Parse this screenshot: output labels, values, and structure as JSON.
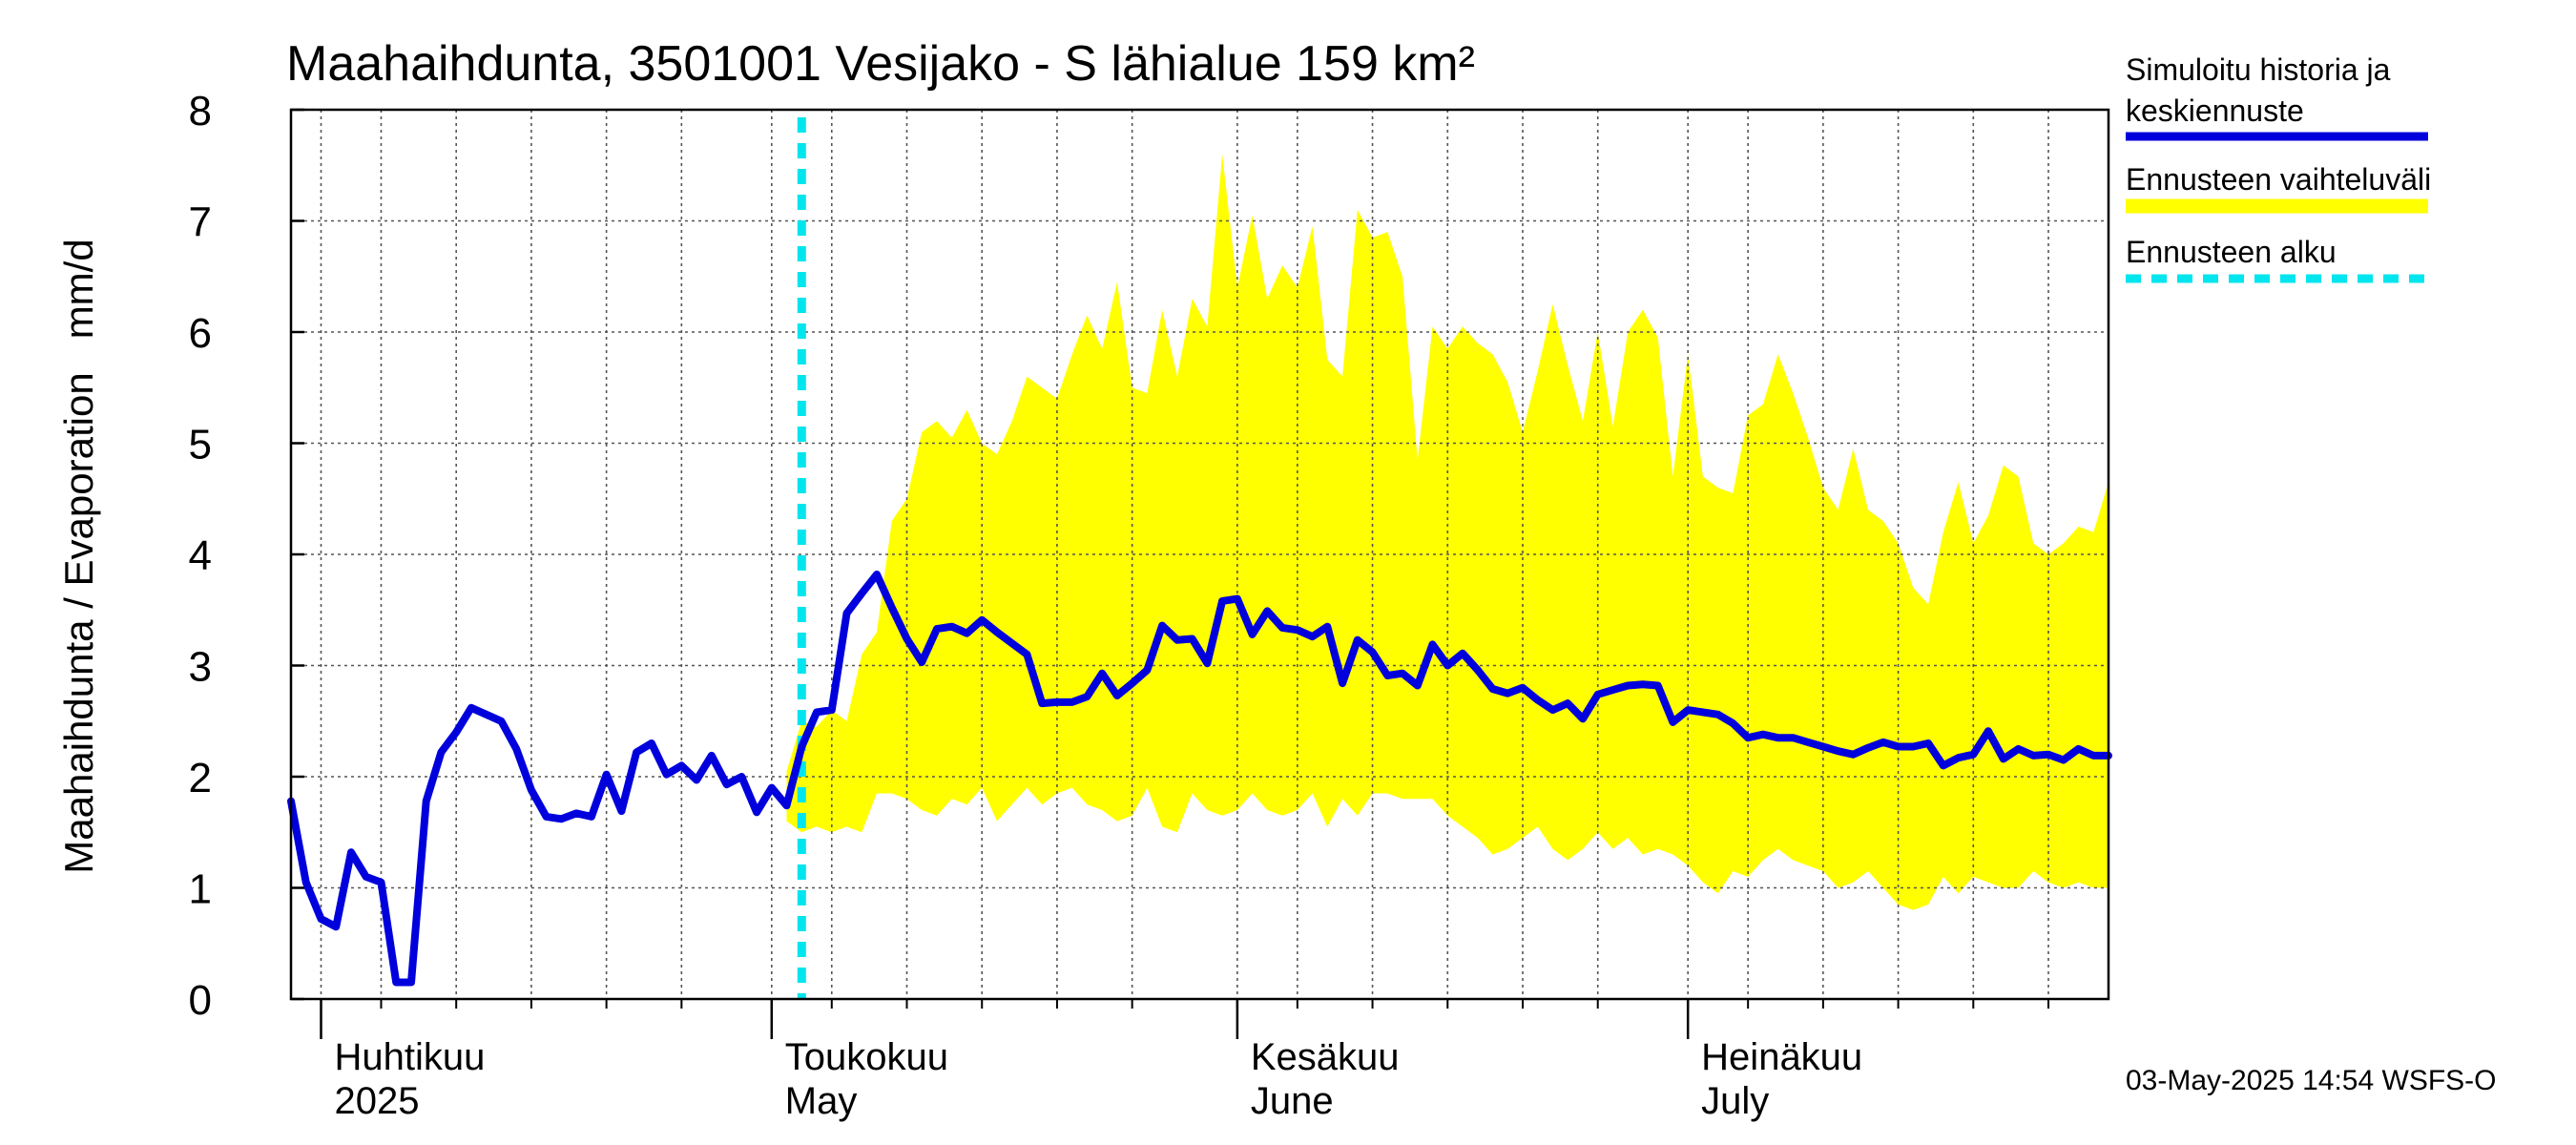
{
  "chart_data": {
    "type": "area",
    "title": "Maahaihdunta, 3501001 Vesijako - S lähialue 159 km²",
    "ylabel": "Maahaihdunta / Evaporation   mm/d",
    "xlabel": "",
    "ylim": [
      0,
      8
    ],
    "yticks": [
      "0",
      "1",
      "2",
      "3",
      "4",
      "5",
      "6",
      "7",
      "8"
    ],
    "x_start": "2025-03-30",
    "x_end": "2025-07-29",
    "forecast_start": "2025-05-03",
    "grid": true,
    "legend_position": "right",
    "months": [
      {
        "line1": "Huhtikuu",
        "line2": "2025",
        "date": "2025-04-01"
      },
      {
        "line1": "Toukokuu",
        "line2": "May",
        "date": "2025-05-01"
      },
      {
        "line1": "Kesäkuu",
        "line2": "June",
        "date": "2025-06-01"
      },
      {
        "line1": "Heinäkuu",
        "line2": "July",
        "date": "2025-07-01"
      }
    ],
    "legend": [
      {
        "label_line1": "Simuloitu historia ja",
        "label_line2": "keskiennuste",
        "color": "#0000dd",
        "style": "solid"
      },
      {
        "label_line1": "Ennusteen vaihteluväli",
        "label_line2": "",
        "color": "#ffff00",
        "style": "solid"
      },
      {
        "label_line1": "Ennusteen alku",
        "label_line2": "",
        "color": "#00e5ee",
        "style": "dashed"
      }
    ],
    "series": [
      {
        "name": "Simuloitu historia ja keskiennuste",
        "color": "#0000dd",
        "x": [
          "2025-03-30",
          "2025-03-31",
          "2025-04-01",
          "2025-04-02",
          "2025-04-03",
          "2025-04-04",
          "2025-04-05",
          "2025-04-06",
          "2025-04-07",
          "2025-04-08",
          "2025-04-09",
          "2025-04-10",
          "2025-04-11",
          "2025-04-12",
          "2025-04-13",
          "2025-04-14",
          "2025-04-15",
          "2025-04-16",
          "2025-04-17",
          "2025-04-18",
          "2025-04-19",
          "2025-04-20",
          "2025-04-21",
          "2025-04-22",
          "2025-04-23",
          "2025-04-24",
          "2025-04-25",
          "2025-04-26",
          "2025-04-27",
          "2025-04-28",
          "2025-04-29",
          "2025-04-30",
          "2025-05-01",
          "2025-05-02",
          "2025-05-03",
          "2025-05-04",
          "2025-05-05",
          "2025-05-06",
          "2025-05-07",
          "2025-05-08",
          "2025-05-09",
          "2025-05-10",
          "2025-05-11",
          "2025-05-12",
          "2025-05-13",
          "2025-05-14",
          "2025-05-15",
          "2025-05-16",
          "2025-05-17",
          "2025-05-18",
          "2025-05-19",
          "2025-05-20",
          "2025-05-21",
          "2025-05-22",
          "2025-05-23",
          "2025-05-24",
          "2025-05-25",
          "2025-05-26",
          "2025-05-27",
          "2025-05-28",
          "2025-05-29",
          "2025-05-30",
          "2025-05-31",
          "2025-06-01",
          "2025-06-02",
          "2025-06-03",
          "2025-06-04",
          "2025-06-05",
          "2025-06-06",
          "2025-06-07",
          "2025-06-08",
          "2025-06-09",
          "2025-06-10",
          "2025-06-11",
          "2025-06-12",
          "2025-06-13",
          "2025-06-14",
          "2025-06-15",
          "2025-06-16",
          "2025-06-17",
          "2025-06-18",
          "2025-06-19",
          "2025-06-20",
          "2025-06-21",
          "2025-06-22",
          "2025-06-23",
          "2025-06-24",
          "2025-06-25",
          "2025-06-26",
          "2025-06-27",
          "2025-06-28",
          "2025-06-29",
          "2025-06-30",
          "2025-07-01",
          "2025-07-02",
          "2025-07-03",
          "2025-07-04",
          "2025-07-05",
          "2025-07-06",
          "2025-07-07",
          "2025-07-08",
          "2025-07-09",
          "2025-07-10",
          "2025-07-11",
          "2025-07-12",
          "2025-07-13",
          "2025-07-14",
          "2025-07-15",
          "2025-07-16",
          "2025-07-17",
          "2025-07-18",
          "2025-07-19",
          "2025-07-20",
          "2025-07-21",
          "2025-07-22",
          "2025-07-23",
          "2025-07-24",
          "2025-07-25",
          "2025-07-26",
          "2025-07-27",
          "2025-07-28",
          "2025-07-29"
        ],
        "values": [
          1.78,
          1.05,
          0.72,
          0.65,
          1.32,
          1.1,
          1.05,
          0.15,
          0.15,
          1.78,
          2.22,
          2.4,
          2.62,
          2.56,
          2.5,
          2.25,
          1.88,
          1.64,
          1.62,
          1.67,
          1.64,
          2.02,
          1.69,
          2.22,
          2.3,
          2.02,
          2.1,
          1.97,
          2.19,
          1.93,
          2.0,
          1.68,
          1.9,
          1.74,
          2.27,
          2.58,
          2.6,
          3.47,
          3.65,
          3.82,
          3.52,
          3.24,
          3.03,
          3.33,
          3.35,
          3.29,
          3.41,
          3.3,
          3.2,
          3.1,
          2.66,
          2.67,
          2.67,
          2.72,
          2.93,
          2.73,
          2.84,
          2.96,
          3.36,
          3.23,
          3.24,
          3.02,
          3.58,
          3.6,
          3.28,
          3.49,
          3.34,
          3.32,
          3.26,
          3.35,
          2.84,
          3.23,
          3.12,
          2.91,
          2.93,
          2.82,
          3.19,
          3.0,
          3.11,
          2.96,
          2.79,
          2.75,
          2.8,
          2.69,
          2.6,
          2.66,
          2.52,
          2.74,
          2.78,
          2.82,
          2.83,
          2.82,
          2.49,
          2.6,
          2.58,
          2.56,
          2.48,
          2.35,
          2.38,
          2.35,
          2.35,
          2.31,
          2.27,
          2.23,
          2.2,
          2.26,
          2.31,
          2.27,
          2.27,
          2.3,
          2.1,
          2.17,
          2.2,
          2.41,
          2.16,
          2.25,
          2.19,
          2.2,
          2.15,
          2.25,
          2.19,
          2.19
        ]
      },
      {
        "name": "Ennusteen vaihteluväli (yläraja)",
        "color": "#ffff00",
        "x": [
          "2025-05-02",
          "2025-05-03",
          "2025-05-04",
          "2025-05-05",
          "2025-05-06",
          "2025-05-07",
          "2025-05-08",
          "2025-05-09",
          "2025-05-10",
          "2025-05-11",
          "2025-05-12",
          "2025-05-13",
          "2025-05-14",
          "2025-05-15",
          "2025-05-16",
          "2025-05-17",
          "2025-05-18",
          "2025-05-19",
          "2025-05-20",
          "2025-05-21",
          "2025-05-22",
          "2025-05-23",
          "2025-05-24",
          "2025-05-25",
          "2025-05-26",
          "2025-05-27",
          "2025-05-28",
          "2025-05-29",
          "2025-05-30",
          "2025-05-31",
          "2025-06-01",
          "2025-06-02",
          "2025-06-03",
          "2025-06-04",
          "2025-06-05",
          "2025-06-06",
          "2025-06-07",
          "2025-06-08",
          "2025-06-09",
          "2025-06-10",
          "2025-06-11",
          "2025-06-12",
          "2025-06-13",
          "2025-06-14",
          "2025-06-15",
          "2025-06-16",
          "2025-06-17",
          "2025-06-18",
          "2025-06-19",
          "2025-06-20",
          "2025-06-21",
          "2025-06-22",
          "2025-06-23",
          "2025-06-24",
          "2025-06-25",
          "2025-06-26",
          "2025-06-27",
          "2025-06-28",
          "2025-06-29",
          "2025-06-30",
          "2025-07-01",
          "2025-07-02",
          "2025-07-03",
          "2025-07-04",
          "2025-07-05",
          "2025-07-06",
          "2025-07-07",
          "2025-07-08",
          "2025-07-09",
          "2025-07-10",
          "2025-07-11",
          "2025-07-12",
          "2025-07-13",
          "2025-07-14",
          "2025-07-15",
          "2025-07-16",
          "2025-07-17",
          "2025-07-18",
          "2025-07-19",
          "2025-07-20",
          "2025-07-21",
          "2025-07-22",
          "2025-07-23",
          "2025-07-24",
          "2025-07-25",
          "2025-07-26",
          "2025-07-27",
          "2025-07-28",
          "2025-07-29"
        ],
        "values": [
          2.05,
          2.5,
          2.45,
          2.6,
          2.5,
          3.1,
          3.3,
          4.3,
          4.5,
          5.1,
          5.2,
          5.05,
          5.3,
          5.0,
          4.9,
          5.2,
          5.6,
          5.5,
          5.4,
          5.8,
          6.15,
          5.85,
          6.45,
          5.5,
          5.45,
          6.2,
          5.6,
          6.3,
          6.05,
          7.6,
          6.4,
          7.05,
          6.3,
          6.6,
          6.4,
          6.95,
          5.75,
          5.6,
          7.1,
          6.85,
          6.9,
          6.5,
          4.85,
          6.05,
          5.85,
          6.05,
          5.9,
          5.8,
          5.55,
          5.1,
          5.65,
          6.25,
          5.7,
          5.2,
          6.0,
          5.15,
          6.0,
          6.2,
          5.95,
          4.7,
          5.8,
          4.7,
          4.6,
          4.55,
          5.25,
          5.35,
          5.8,
          5.45,
          5.05,
          4.6,
          4.4,
          4.95,
          4.4,
          4.3,
          4.1,
          3.7,
          3.55,
          4.2,
          4.65,
          4.1,
          4.35,
          4.8,
          4.7,
          4.1,
          4.0,
          4.1,
          4.25,
          4.2,
          4.65
        ]
      },
      {
        "name": "Ennusteen vaihteluväli (alaraja)",
        "color": "#ffff00",
        "x": [
          "2025-05-02",
          "2025-05-03",
          "2025-05-04",
          "2025-05-05",
          "2025-05-06",
          "2025-05-07",
          "2025-05-08",
          "2025-05-09",
          "2025-05-10",
          "2025-05-11",
          "2025-05-12",
          "2025-05-13",
          "2025-05-14",
          "2025-05-15",
          "2025-05-16",
          "2025-05-17",
          "2025-05-18",
          "2025-05-19",
          "2025-05-20",
          "2025-05-21",
          "2025-05-22",
          "2025-05-23",
          "2025-05-24",
          "2025-05-25",
          "2025-05-26",
          "2025-05-27",
          "2025-05-28",
          "2025-05-29",
          "2025-05-30",
          "2025-05-31",
          "2025-06-01",
          "2025-06-02",
          "2025-06-03",
          "2025-06-04",
          "2025-06-05",
          "2025-06-06",
          "2025-06-07",
          "2025-06-08",
          "2025-06-09",
          "2025-06-10",
          "2025-06-11",
          "2025-06-12",
          "2025-06-13",
          "2025-06-14",
          "2025-06-15",
          "2025-06-16",
          "2025-06-17",
          "2025-06-18",
          "2025-06-19",
          "2025-06-20",
          "2025-06-21",
          "2025-06-22",
          "2025-06-23",
          "2025-06-24",
          "2025-06-25",
          "2025-06-26",
          "2025-06-27",
          "2025-06-28",
          "2025-06-29",
          "2025-06-30",
          "2025-07-01",
          "2025-07-02",
          "2025-07-03",
          "2025-07-04",
          "2025-07-05",
          "2025-07-06",
          "2025-07-07",
          "2025-07-08",
          "2025-07-09",
          "2025-07-10",
          "2025-07-11",
          "2025-07-12",
          "2025-07-13",
          "2025-07-14",
          "2025-07-15",
          "2025-07-16",
          "2025-07-17",
          "2025-07-18",
          "2025-07-19",
          "2025-07-20",
          "2025-07-21",
          "2025-07-22",
          "2025-07-23",
          "2025-07-24",
          "2025-07-25",
          "2025-07-26",
          "2025-07-27",
          "2025-07-28",
          "2025-07-29"
        ],
        "values": [
          1.6,
          1.5,
          1.55,
          1.5,
          1.55,
          1.5,
          1.85,
          1.85,
          1.8,
          1.7,
          1.65,
          1.8,
          1.75,
          1.9,
          1.6,
          1.75,
          1.9,
          1.75,
          1.85,
          1.9,
          1.75,
          1.7,
          1.6,
          1.65,
          1.9,
          1.55,
          1.5,
          1.85,
          1.7,
          1.65,
          1.7,
          1.85,
          1.7,
          1.65,
          1.7,
          1.85,
          1.55,
          1.8,
          1.65,
          1.85,
          1.85,
          1.8,
          1.8,
          1.8,
          1.65,
          1.55,
          1.45,
          1.3,
          1.35,
          1.45,
          1.55,
          1.35,
          1.25,
          1.35,
          1.5,
          1.35,
          1.45,
          1.3,
          1.35,
          1.3,
          1.2,
          1.05,
          0.95,
          1.15,
          1.1,
          1.25,
          1.35,
          1.25,
          1.2,
          1.15,
          1.0,
          1.05,
          1.15,
          1.0,
          0.85,
          0.8,
          0.85,
          1.1,
          0.95,
          1.1,
          1.05,
          1.0,
          1.0,
          1.15,
          1.05,
          1.0,
          1.05,
          1.0,
          1.0
        ]
      }
    ]
  },
  "footer": "03-May-2025 14:54 WSFS-O"
}
